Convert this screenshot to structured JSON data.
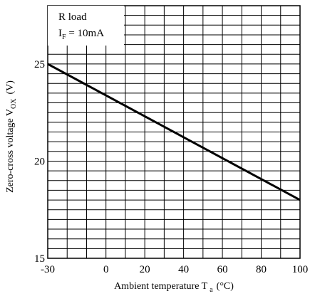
{
  "chart_data": {
    "type": "line",
    "title": "",
    "xlabel": "Ambient temperature T",
    "xlabel_sub": "a",
    "xlabel_unit": "(°C)",
    "ylabel": "Zero-cross voltage V",
    "ylabel_sub": "OX",
    "ylabel_unit": "(V)",
    "xlim": [
      -30,
      100
    ],
    "ylim": [
      15,
      28
    ],
    "x_ticks": [
      -30,
      0,
      20,
      40,
      60,
      80,
      100
    ],
    "x_tick_labels": [
      "-30",
      "0",
      "20",
      "40",
      "60",
      "80",
      "100"
    ],
    "y_ticks": [
      15,
      20,
      25
    ],
    "y_tick_labels": [
      "15",
      "20",
      "25"
    ],
    "grid": true,
    "annotation_line1": "R load",
    "annotation_line2_main": "I",
    "annotation_line2_sub": "F",
    "annotation_line2_rest": " = 10mA",
    "series": [
      {
        "x": [
          -30,
          100
        ],
        "y": [
          25,
          18
        ]
      }
    ]
  }
}
